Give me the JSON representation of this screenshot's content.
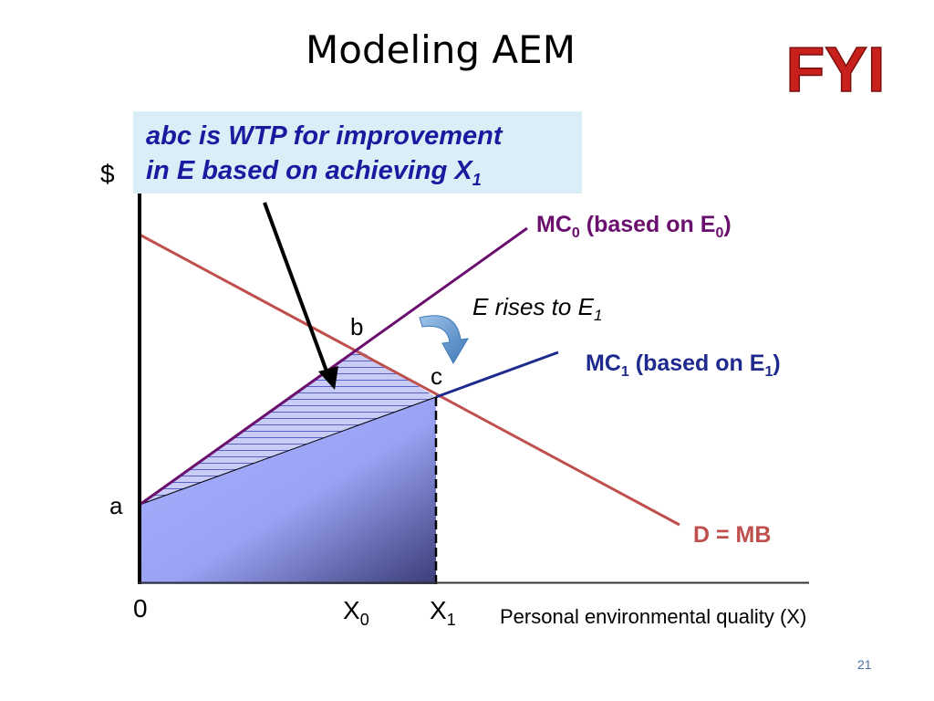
{
  "slide": {
    "title": "Modeling AEM",
    "badge": "FYI",
    "page_number": "21"
  },
  "callout": {
    "line1": "abc is WTP for improvement",
    "line2_main": "in E based on achieving X",
    "line2_sub": "1"
  },
  "diagram": {
    "y_axis_label": "$",
    "x_axis_label": "Personal environmental quality (X)",
    "origin_label": "0",
    "point_a": "a",
    "point_b": "b",
    "point_c": "c",
    "x0_main": "X",
    "x0_sub": "0",
    "x1_main": "X",
    "x1_sub": "1",
    "mc0_main": "MC",
    "mc0_sub": "0",
    "mc0_rest": " (based on E",
    "mc0_sub2": "0",
    "mc0_end": ")",
    "mc1_main": "MC",
    "mc1_sub": "1",
    "mc1_rest": " (based on E",
    "mc1_sub2": "1",
    "mc1_end": ")",
    "e_rises_main": "E rises to E",
    "e_rises_sub": "1",
    "demand_label": "D = MB",
    "colors": {
      "mc0": "#6a0f6e",
      "mc1": "#1f2a8f",
      "demand": "#c0504d",
      "shade": "#9ea6f6",
      "badge": "#c8211d",
      "callout_text": "#1a1aa0"
    }
  }
}
